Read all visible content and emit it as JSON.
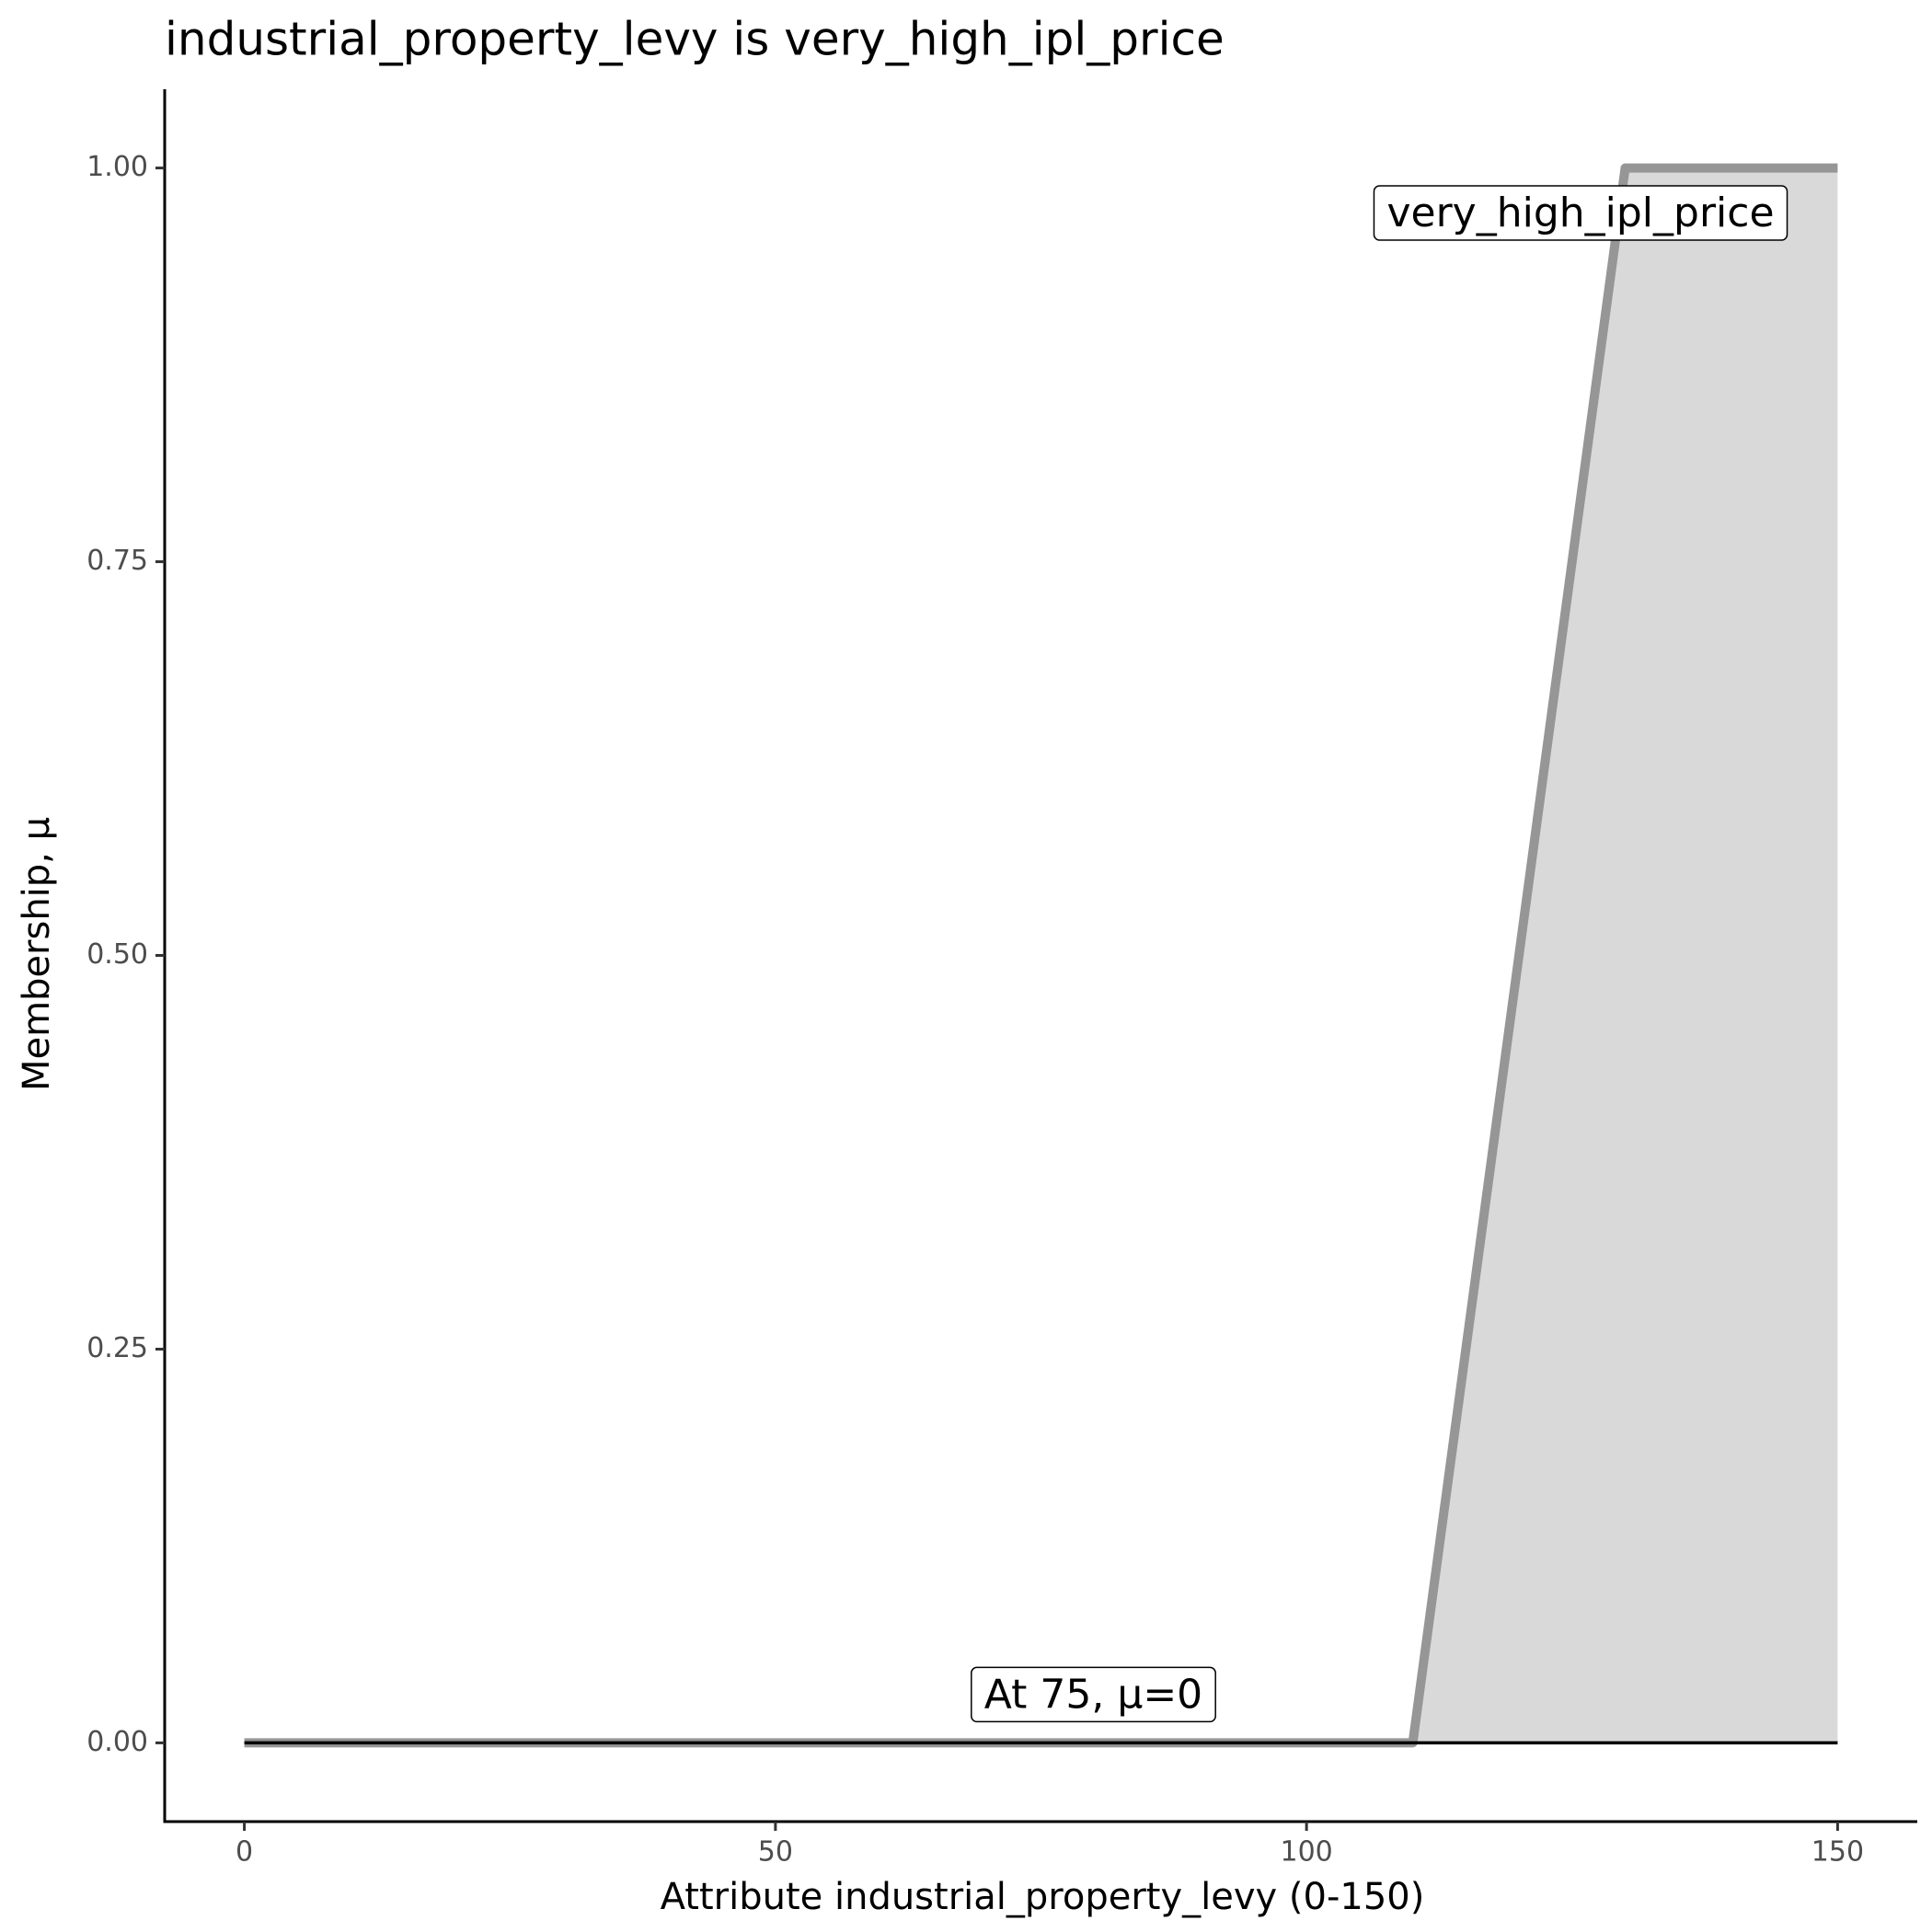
{
  "chart_data": {
    "type": "line",
    "title": "industrial_property_levy is very_high_ipl_price",
    "x_label": "Attribute industrial_property_levy (0-150)",
    "y_label": "Membership, μ",
    "x": [
      0,
      110,
      130,
      150
    ],
    "series": [
      {
        "name": "very_high_ipl_price",
        "color": "#969696",
        "fill": "#d9d9d9",
        "values": [
          0,
          0,
          1,
          1
        ]
      }
    ],
    "annotations": [
      {
        "x": 75,
        "y": 0,
        "label": "At 75, μ=0",
        "color": "#000000"
      }
    ],
    "xlim": [
      -7.5,
      157.5
    ],
    "ylim": [
      -0.05,
      1.05
    ],
    "xticks": [
      0,
      50,
      100,
      150
    ],
    "yticks": [
      {
        "value": 0,
        "label": "0.00"
      },
      {
        "value": 0.25,
        "label": "0.25"
      },
      {
        "value": 0.5,
        "label": "0.50"
      },
      {
        "value": 0.75,
        "label": "0.75"
      },
      {
        "value": 1,
        "label": "1.00"
      }
    ],
    "grid": false
  }
}
